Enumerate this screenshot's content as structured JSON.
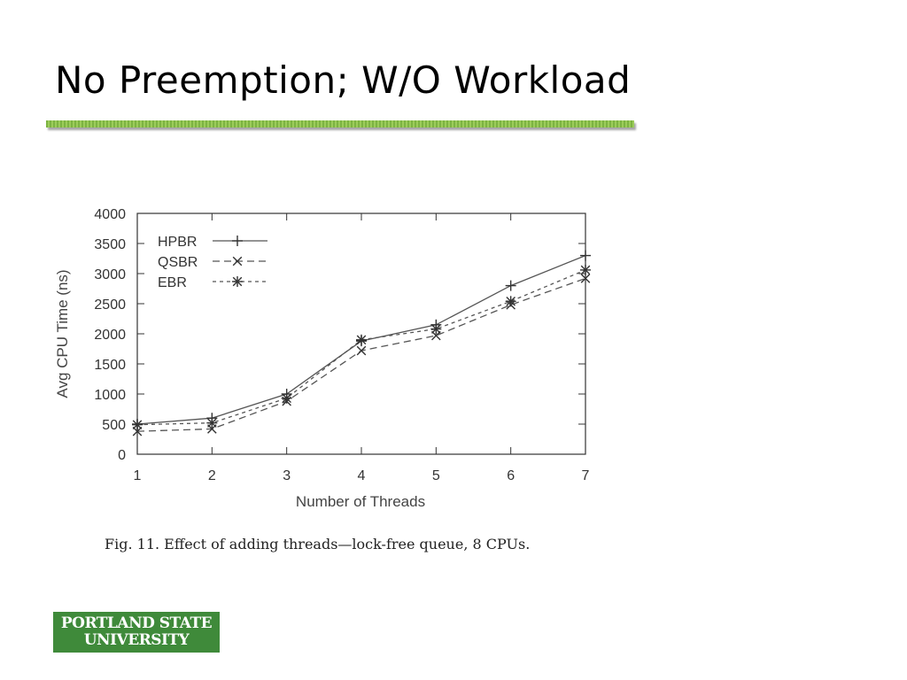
{
  "slide": {
    "title": "No Preemption; W/O Workload",
    "caption": "Fig. 11.  Effect of adding threads—lock-free queue, 8 CPUs.",
    "logo_line1": "PORTLAND STATE",
    "logo_line2": "UNIVERSITY",
    "accent_color": "#7cb342",
    "logo_color": "#3f8a3a"
  },
  "chart_data": {
    "type": "line",
    "title": "",
    "xlabel": "Number of Threads",
    "ylabel": "Avg CPU Time (ns)",
    "x": [
      1,
      2,
      3,
      4,
      5,
      6,
      7
    ],
    "xlim": [
      1,
      7
    ],
    "ylim": [
      0,
      4000
    ],
    "yticks": [
      0,
      500,
      1000,
      1500,
      2000,
      2500,
      3000,
      3500,
      4000
    ],
    "grid": false,
    "legend_position": "top-left",
    "series": [
      {
        "name": "HPBR",
        "values": [
          500,
          600,
          1000,
          1880,
          2150,
          2800,
          3300
        ],
        "dash": "solid",
        "marker": "plus"
      },
      {
        "name": "QSBR",
        "values": [
          380,
          420,
          880,
          1720,
          1970,
          2480,
          2920
        ],
        "dash": "long-dash",
        "marker": "x"
      },
      {
        "name": "EBR",
        "values": [
          490,
          520,
          930,
          1900,
          2080,
          2540,
          3060
        ],
        "dash": "short-dash",
        "marker": "star"
      }
    ]
  }
}
